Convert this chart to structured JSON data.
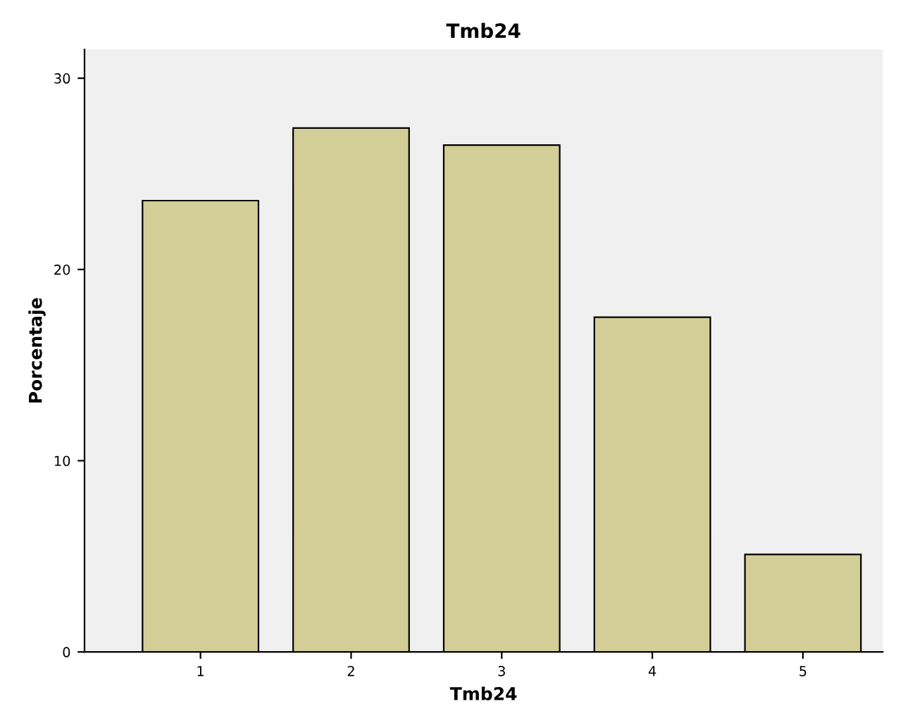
{
  "chart_data": {
    "type": "bar",
    "title": "Tmb24",
    "xlabel": "Tmb24",
    "ylabel": "Porcentaje",
    "categories": [
      "1",
      "2",
      "3",
      "4",
      "5"
    ],
    "values": [
      23.6,
      27.4,
      26.5,
      17.5,
      5.1
    ],
    "color": "#d3ce97",
    "ylim": [
      0,
      31.5
    ],
    "yticks": [
      0,
      10,
      20,
      30
    ],
    "grid": false,
    "legend": false
  }
}
